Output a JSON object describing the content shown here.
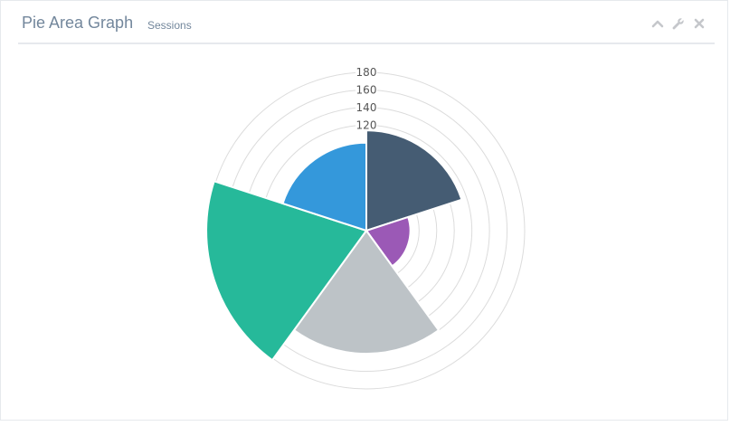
{
  "panel": {
    "title": "Pie Area Graph",
    "subtitle": "Sessions"
  },
  "tools": {
    "collapse_icon": "chevron-up-icon",
    "settings_icon": "wrench-icon",
    "close_icon": "close-icon"
  },
  "chart_data": {
    "type": "polarArea",
    "categories": [
      "Dark Slate",
      "Purple",
      "Gray",
      "Green",
      "Blue"
    ],
    "values": [
      114,
      50,
      140,
      182,
      100
    ],
    "colors": [
      "#455c73",
      "#9b59b6",
      "#bdc3c7",
      "#26b99a",
      "#3498db"
    ],
    "r_max": 180,
    "r_ticks": [
      120,
      140,
      160,
      180
    ],
    "grid": true
  }
}
